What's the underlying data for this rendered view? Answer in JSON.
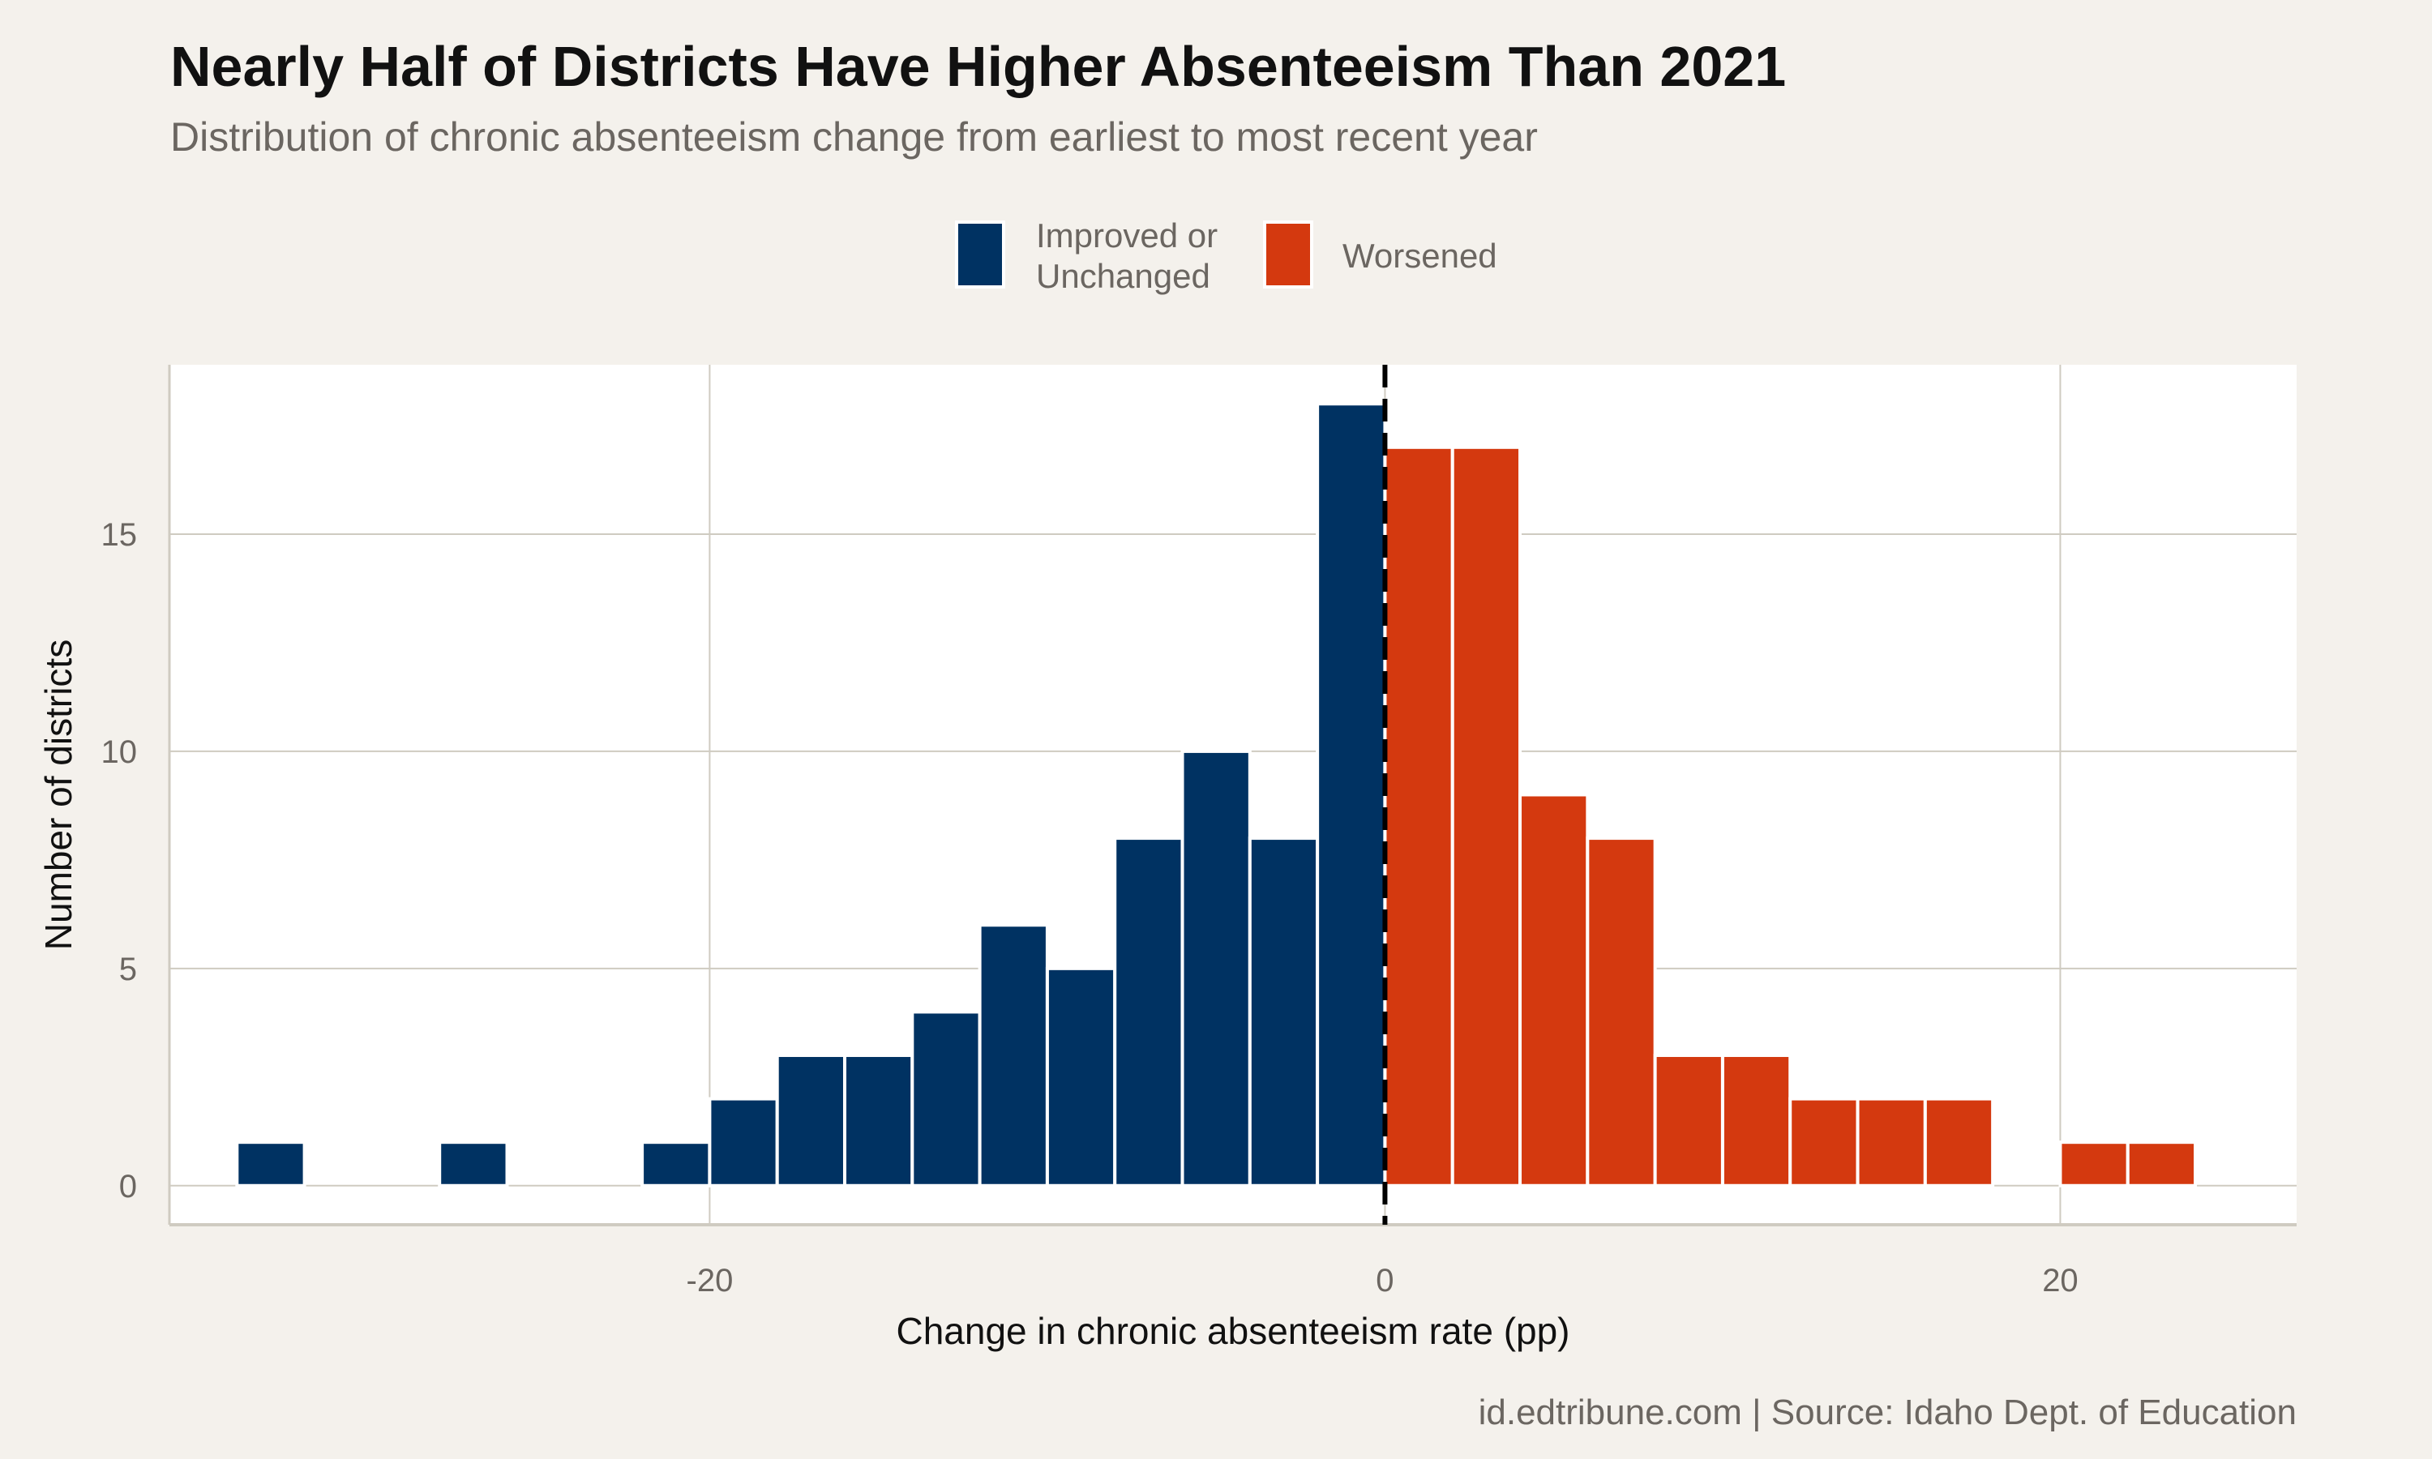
{
  "chart_data": {
    "type": "bar",
    "title": "Nearly Half of Districts Have Higher Absenteeism Than 2021",
    "subtitle": "Distribution of chronic absenteeism change from earliest to most recent year",
    "xlabel": "Change in chronic absenteeism rate (pp)",
    "ylabel": "Number of districts",
    "caption": "id.edtribune.com | Source: Idaho Dept. of Education",
    "xlim": [
      -36,
      27
    ],
    "ylim": [
      -0.9,
      18.9
    ],
    "xticks": [
      -20,
      0,
      20
    ],
    "xtick_labels": [
      "-20",
      "0",
      "20"
    ],
    "yticks": [
      0,
      5,
      10,
      15
    ],
    "ytick_labels": [
      "0",
      "5",
      "10",
      "15"
    ],
    "grid": true,
    "reference_line": {
      "x": 0,
      "style": "dashed",
      "color": "#000000"
    },
    "legend": {
      "placement": "top",
      "entries": [
        {
          "label": "Improved or\nUnchanged",
          "line1": "Improved or",
          "line2": "Unchanged",
          "color": "#003262"
        },
        {
          "label": "Worsened",
          "color": "#d4390f"
        }
      ]
    },
    "bin_width": 2,
    "bins": [
      {
        "start": -34,
        "end": -32,
        "count": 1,
        "group": "Improved or Unchanged"
      },
      {
        "start": -28,
        "end": -26,
        "count": 1,
        "group": "Improved or Unchanged"
      },
      {
        "start": -22,
        "end": -20,
        "count": 1,
        "group": "Improved or Unchanged"
      },
      {
        "start": -20,
        "end": -18,
        "count": 2,
        "group": "Improved or Unchanged"
      },
      {
        "start": -18,
        "end": -16,
        "count": 3,
        "group": "Improved or Unchanged"
      },
      {
        "start": -16,
        "end": -14,
        "count": 3,
        "group": "Improved or Unchanged"
      },
      {
        "start": -14,
        "end": -12,
        "count": 4,
        "group": "Improved or Unchanged"
      },
      {
        "start": -12,
        "end": -10,
        "count": 6,
        "group": "Improved or Unchanged"
      },
      {
        "start": -10,
        "end": -8,
        "count": 5,
        "group": "Improved or Unchanged"
      },
      {
        "start": -8,
        "end": -6,
        "count": 8,
        "group": "Improved or Unchanged"
      },
      {
        "start": -6,
        "end": -4,
        "count": 10,
        "group": "Improved or Unchanged"
      },
      {
        "start": -4,
        "end": -2,
        "count": 8,
        "group": "Improved or Unchanged"
      },
      {
        "start": -2,
        "end": 0,
        "count": 18,
        "group": "Improved or Unchanged"
      },
      {
        "start": 0,
        "end": 2,
        "count": 17,
        "group": "Worsened"
      },
      {
        "start": 2,
        "end": 4,
        "count": 17,
        "group": "Worsened"
      },
      {
        "start": 4,
        "end": 6,
        "count": 9,
        "group": "Worsened"
      },
      {
        "start": 6,
        "end": 8,
        "count": 8,
        "group": "Worsened"
      },
      {
        "start": 8,
        "end": 10,
        "count": 3,
        "group": "Worsened"
      },
      {
        "start": 10,
        "end": 12,
        "count": 3,
        "group": "Worsened"
      },
      {
        "start": 12,
        "end": 14,
        "count": 2,
        "group": "Worsened"
      },
      {
        "start": 14,
        "end": 16,
        "count": 2,
        "group": "Worsened"
      },
      {
        "start": 16,
        "end": 18,
        "count": 2,
        "group": "Worsened"
      },
      {
        "start": 20,
        "end": 22,
        "count": 1,
        "group": "Worsened"
      },
      {
        "start": 22,
        "end": 24,
        "count": 1,
        "group": "Worsened"
      }
    ],
    "colors": {
      "Improved or Unchanged": "#003262",
      "Worsened": "#d4390f",
      "panel": "#ffffff",
      "background": "#f4f1ec",
      "grid": "#cfcbc1"
    }
  }
}
